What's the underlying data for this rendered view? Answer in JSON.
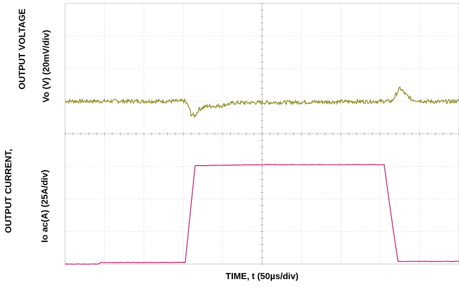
{
  "chart_data": {
    "type": "line",
    "xlabel": "TIME, t (50µs/div)",
    "ylabel_outer_top": "OUTPUT VOLTAGE",
    "ylabel_outer_bottom": "OUTPUT CURRENT,",
    "ylabel_inner_top": "Vo (V) (20mV/div)",
    "ylabel_inner_bottom": "Io ac(A)  (25A/div)",
    "x_divisions": 10,
    "y_divisions": 8,
    "grid": true,
    "x_unit": "div (50µs/div)",
    "series": [
      {
        "name": "",
        "color": "#8b8a1a",
        "x": [
          0,
          3.05,
          3.15,
          3.2,
          3.3,
          3.4,
          3.6,
          3.9,
          4.3,
          6.0,
          8.3,
          8.5,
          8.65,
          8.8,
          9.1,
          9.5,
          10
        ],
        "y": [
          5.0,
          5.0,
          4.8,
          4.6,
          4.55,
          4.75,
          4.85,
          4.85,
          4.95,
          4.97,
          5.0,
          5.4,
          5.2,
          5.05,
          5.0,
          4.98,
          5.0
        ]
      },
      {
        "name": "",
        "color": "#c0186a",
        "x": [
          0,
          0.85,
          0.9,
          3.05,
          3.3,
          5.0,
          8.1,
          8.3,
          8.45,
          10
        ],
        "y": [
          0.0,
          0.0,
          0.05,
          0.05,
          3.02,
          3.05,
          3.05,
          1.3,
          0.08,
          0.08
        ]
      }
    ]
  }
}
